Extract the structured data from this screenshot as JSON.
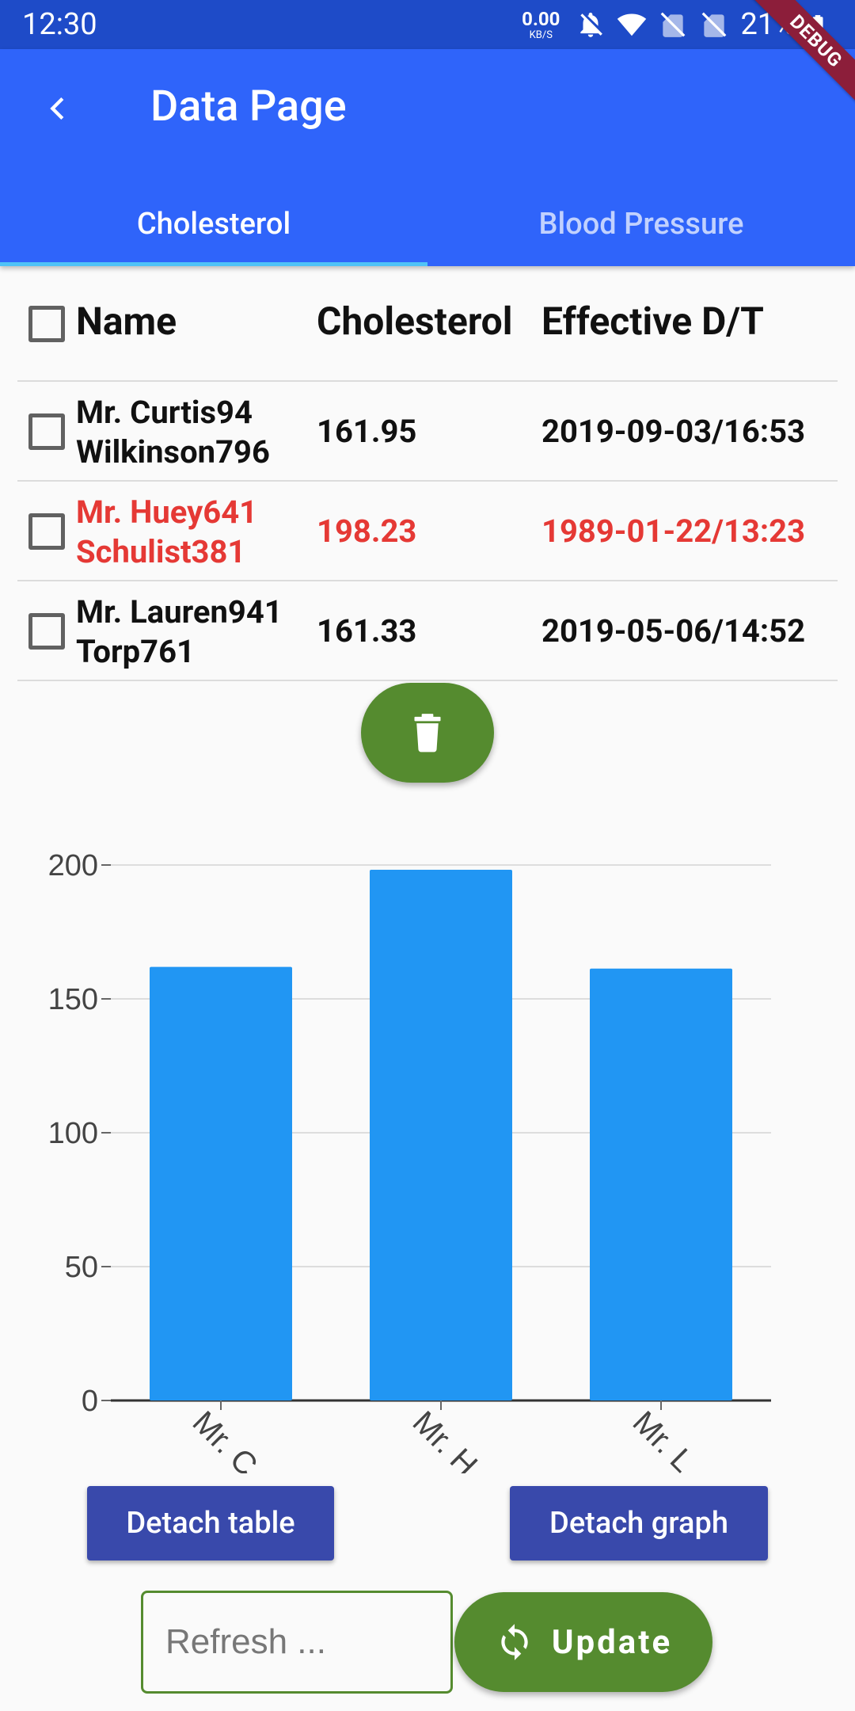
{
  "status_bar": {
    "time": "12:30",
    "net_speed": "0.00",
    "net_unit": "KB/S",
    "battery": "21%"
  },
  "app_bar": {
    "title": "Data Page",
    "back_icon": "chevron-left-icon",
    "debug_label": "DEBUG"
  },
  "tabs": [
    {
      "label": "Cholesterol",
      "active": true
    },
    {
      "label": "Blood Pressure",
      "active": false
    }
  ],
  "table": {
    "headers": {
      "name": "Name",
      "value": "Cholesterol",
      "date": "Effective D/T"
    },
    "rows": [
      {
        "name_first": "Mr. Curtis94",
        "name_last": "Wilkinson796",
        "value": "161.95",
        "date": "2019-09-03/16:53",
        "highlight": false
      },
      {
        "name_first": "Mr. Huey641",
        "name_last": "Schulist381",
        "value": "198.23",
        "date": "1989-01-22/13:23",
        "highlight": true
      },
      {
        "name_first": "Mr. Lauren941",
        "name_last": "Torp761",
        "value": "161.33",
        "date": "2019-05-06/14:52",
        "highlight": false
      }
    ]
  },
  "chart_data": {
    "type": "bar",
    "categories": [
      "Mr. C",
      "Mr. H",
      "Mr. L"
    ],
    "values": [
      161.95,
      198.23,
      161.33
    ],
    "ylim": [
      0,
      200
    ],
    "yticks": [
      0,
      50,
      100,
      150,
      200
    ],
    "title": "",
    "xlabel": "",
    "ylabel": "",
    "grid": true,
    "bar_color": "#2196f3"
  },
  "buttons": {
    "detach_table": "Detach table",
    "detach_graph": "Detach graph",
    "update": "Update",
    "delete_icon": "trash-icon",
    "update_icon": "refresh-icon"
  },
  "refresh_input": {
    "placeholder": "Refresh ...",
    "value": ""
  },
  "colors": {
    "status_bar": "#1e4bc8",
    "app_bar": "#2f64fa",
    "tab_indicator": "#4fc3f7",
    "alert_text": "#e53935",
    "green_action": "#558b2f",
    "detach_button": "#3949ab"
  }
}
